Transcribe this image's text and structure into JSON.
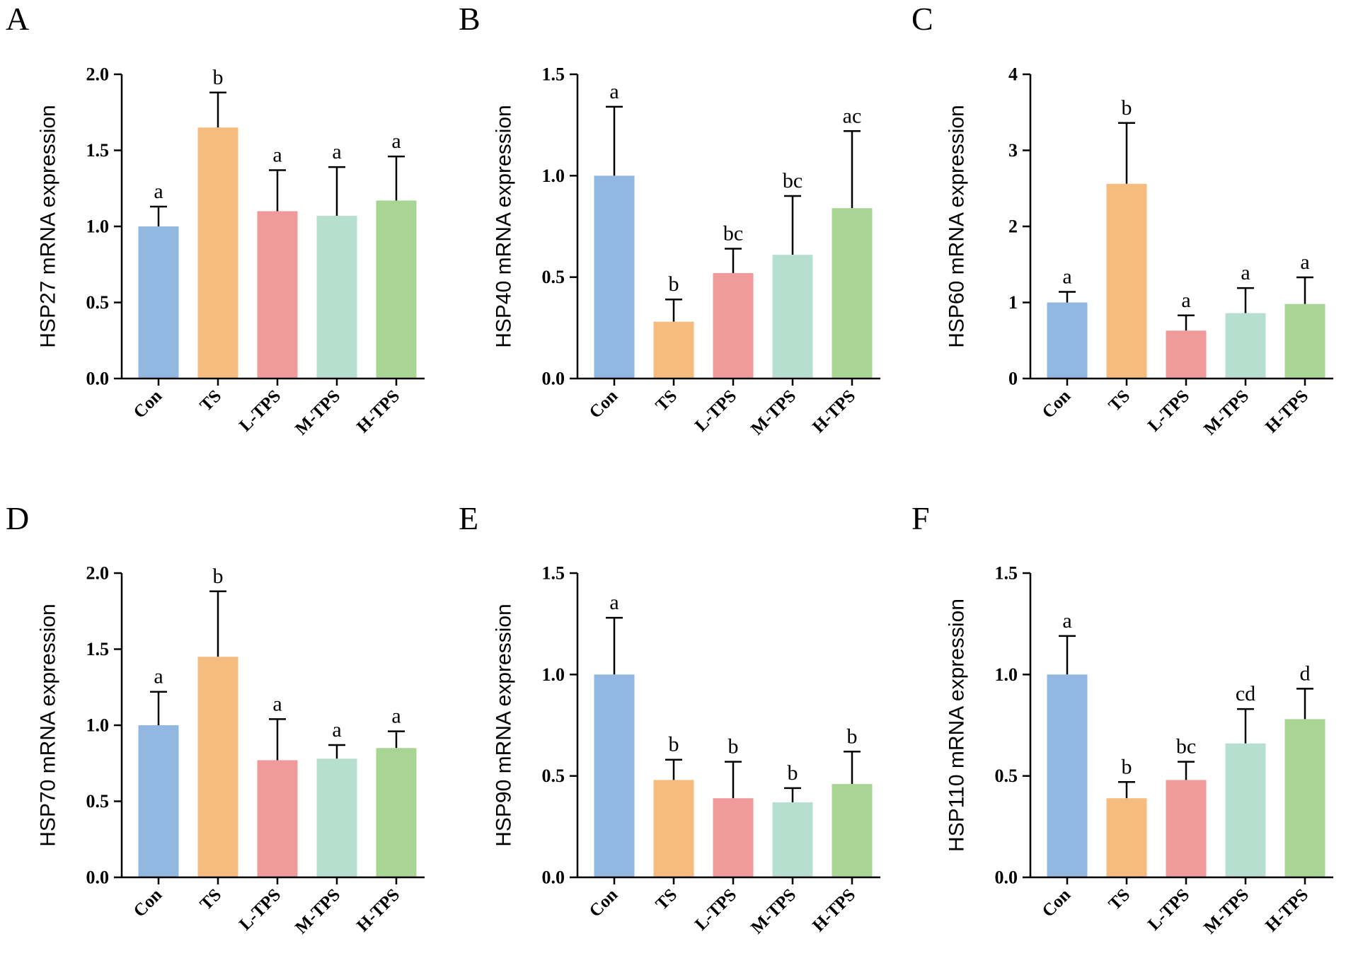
{
  "chart_data": [
    {
      "type": "bar",
      "panel": "A",
      "ylabel": "HSP27 mRNA expression",
      "categories": [
        "Con",
        "TS",
        "L-TPS",
        "M-TPS",
        "H-TPS"
      ],
      "values": [
        1.0,
        1.65,
        1.1,
        1.07,
        1.17
      ],
      "errors": [
        0.13,
        0.23,
        0.27,
        0.32,
        0.29
      ],
      "labels": [
        "a",
        "b",
        "a",
        "a",
        "a"
      ],
      "ylim": [
        0,
        2.0
      ],
      "yticks": [
        0.0,
        0.5,
        1.0,
        1.5,
        2.0
      ],
      "ytick_labels": [
        "0.0",
        "0.5",
        "1.0",
        "1.5",
        "2.0"
      ]
    },
    {
      "type": "bar",
      "panel": "B",
      "ylabel": "HSP40 mRNA expression",
      "categories": [
        "Con",
        "TS",
        "L-TPS",
        "M-TPS",
        "H-TPS"
      ],
      "values": [
        1.0,
        0.28,
        0.52,
        0.61,
        0.84
      ],
      "errors": [
        0.34,
        0.11,
        0.12,
        0.29,
        0.38
      ],
      "labels": [
        "a",
        "b",
        "bc",
        "bc",
        "ac"
      ],
      "ylim": [
        0,
        1.5
      ],
      "yticks": [
        0.0,
        0.5,
        1.0,
        1.5
      ],
      "ytick_labels": [
        "0.0",
        "0.5",
        "1.0",
        "1.5"
      ]
    },
    {
      "type": "bar",
      "panel": "C",
      "ylabel": "HSP60 mRNA expression",
      "categories": [
        "Con",
        "TS",
        "L-TPS",
        "M-TPS",
        "H-TPS"
      ],
      "values": [
        1.0,
        2.56,
        0.63,
        0.86,
        0.98
      ],
      "errors": [
        0.14,
        0.8,
        0.2,
        0.33,
        0.35
      ],
      "labels": [
        "a",
        "b",
        "a",
        "a",
        "a"
      ],
      "ylim": [
        0,
        4
      ],
      "yticks": [
        0,
        1,
        2,
        3,
        4
      ],
      "ytick_labels": [
        "0",
        "1",
        "2",
        "3",
        "4"
      ]
    },
    {
      "type": "bar",
      "panel": "D",
      "ylabel": "HSP70 mRNA expression",
      "categories": [
        "Con",
        "TS",
        "L-TPS",
        "M-TPS",
        "H-TPS"
      ],
      "values": [
        1.0,
        1.45,
        0.77,
        0.78,
        0.85
      ],
      "errors": [
        0.22,
        0.43,
        0.27,
        0.09,
        0.11
      ],
      "labels": [
        "a",
        "b",
        "a",
        "a",
        "a"
      ],
      "ylim": [
        0,
        2.0
      ],
      "yticks": [
        0.0,
        0.5,
        1.0,
        1.5,
        2.0
      ],
      "ytick_labels": [
        "0.0",
        "0.5",
        "1.0",
        "1.5",
        "2.0"
      ]
    },
    {
      "type": "bar",
      "panel": "E",
      "ylabel": "HSP90 mRNA expression",
      "categories": [
        "Con",
        "TS",
        "L-TPS",
        "M-TPS",
        "H-TPS"
      ],
      "values": [
        1.0,
        0.48,
        0.39,
        0.37,
        0.46
      ],
      "errors": [
        0.28,
        0.1,
        0.18,
        0.07,
        0.16
      ],
      "labels": [
        "a",
        "b",
        "b",
        "b",
        "b"
      ],
      "ylim": [
        0,
        1.5
      ],
      "yticks": [
        0.0,
        0.5,
        1.0,
        1.5
      ],
      "ytick_labels": [
        "0.0",
        "0.5",
        "1.0",
        "1.5"
      ]
    },
    {
      "type": "bar",
      "panel": "F",
      "ylabel": "HSP110 mRNA expression",
      "categories": [
        "Con",
        "TS",
        "L-TPS",
        "M-TPS",
        "H-TPS"
      ],
      "values": [
        1.0,
        0.39,
        0.48,
        0.66,
        0.78
      ],
      "errors": [
        0.19,
        0.08,
        0.09,
        0.17,
        0.15
      ],
      "labels": [
        "a",
        "b",
        "bc",
        "cd",
        "d"
      ],
      "ylim": [
        0,
        1.5
      ],
      "yticks": [
        0.0,
        0.5,
        1.0,
        1.5
      ],
      "ytick_labels": [
        "0.0",
        "0.5",
        "1.0",
        "1.5"
      ]
    }
  ],
  "colors": {
    "Con": "#92b8e2",
    "TS": "#f6bb7e",
    "L-TPS": "#f09a9c",
    "M-TPS": "#b7dfd0",
    "H-TPS": "#a8d494",
    "axis": "#000000"
  }
}
